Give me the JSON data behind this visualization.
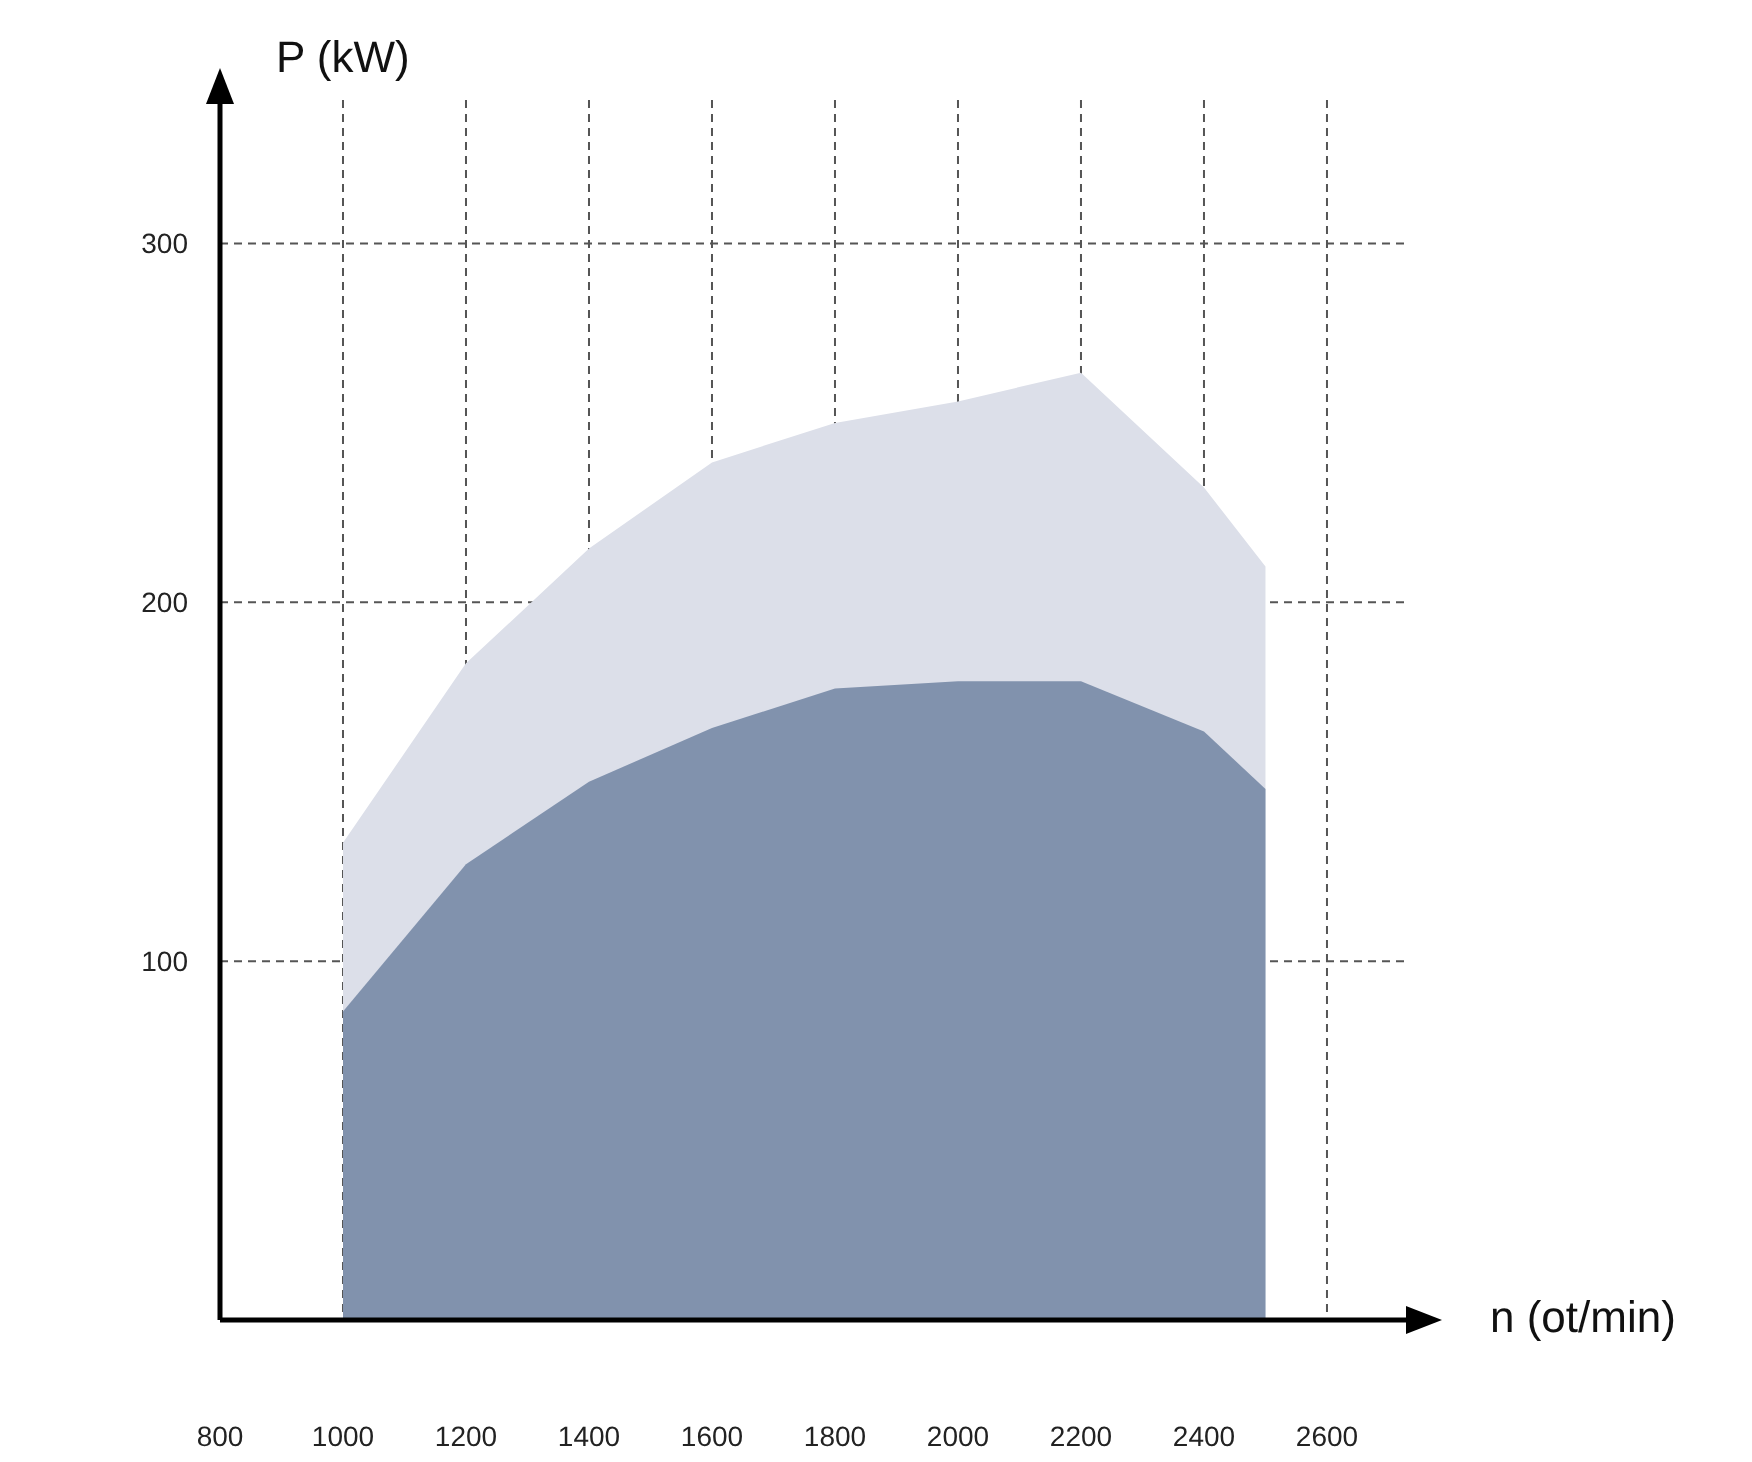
{
  "chart_data": {
    "type": "area",
    "xlabel": "n (ot/min)",
    "ylabel": "P (kW)",
    "x": [
      1000,
      1200,
      1400,
      1600,
      1800,
      2000,
      2200,
      2400,
      2500
    ],
    "series": [
      {
        "color": "#dcdfe9",
        "values": [
          133,
          183,
          215,
          239,
          250,
          256,
          264,
          232,
          210
        ]
      },
      {
        "color": "#8192ad",
        "values": [
          86,
          127,
          150,
          165,
          176,
          178,
          178,
          164,
          148
        ]
      }
    ],
    "xlim": [
      800,
      2735
    ],
    "xticks": [
      800,
      1000,
      1200,
      1400,
      1600,
      1800,
      2000,
      2200,
      2400,
      2600
    ],
    "ylim": [
      0,
      340
    ],
    "yticks": [
      100,
      200,
      300
    ],
    "grid": true
  }
}
